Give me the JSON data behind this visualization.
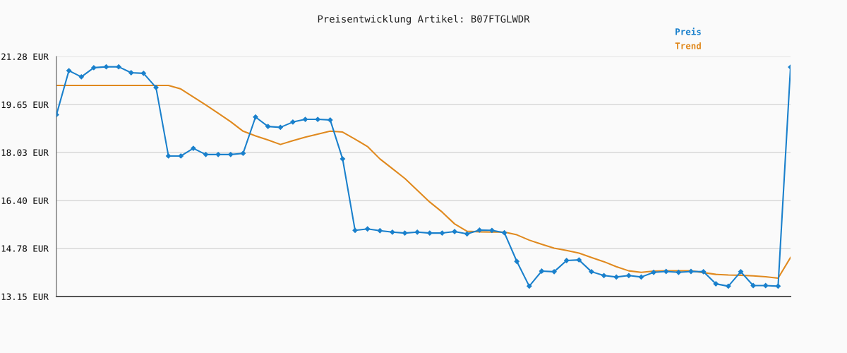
{
  "chart_data": {
    "type": "line",
    "title": "Preisentwicklung Artikel: B07FTGLWDR",
    "categories": [
      null,
      null,
      null,
      null,
      null,
      null,
      null,
      null,
      null,
      null,
      null,
      null,
      null,
      null,
      null,
      null,
      null,
      null,
      null,
      null,
      null,
      null,
      null,
      null,
      null,
      null,
      null,
      null,
      null,
      null,
      null,
      null,
      null,
      null,
      null,
      null,
      null,
      null,
      null,
      null,
      null,
      null,
      null,
      null,
      null,
      null,
      null,
      null,
      null,
      null,
      null,
      null,
      null,
      null,
      null,
      null,
      null,
      null,
      null,
      null
    ],
    "series": [
      {
        "name": "Preis",
        "color": "#1a80cc",
        "marker": "diamond",
        "values": [
          19.31,
          20.8,
          20.59,
          20.9,
          20.93,
          20.93,
          20.73,
          20.71,
          20.23,
          17.91,
          17.91,
          18.17,
          17.96,
          17.96,
          17.96,
          18.0,
          19.23,
          18.91,
          18.88,
          19.06,
          19.15,
          19.15,
          19.13,
          17.81,
          15.39,
          15.44,
          15.38,
          15.33,
          15.3,
          15.33,
          15.3,
          15.3,
          15.35,
          15.27,
          15.4,
          15.39,
          15.31,
          14.34,
          13.5,
          14.01,
          13.99,
          14.37,
          14.39,
          13.99,
          13.86,
          13.81,
          13.86,
          13.81,
          13.97,
          14.0,
          13.97,
          14.0,
          13.99,
          13.58,
          13.5,
          13.99,
          13.52,
          13.52,
          13.5,
          20.92
        ]
      },
      {
        "name": "Trend",
        "color": "#e0891e",
        "marker": "none",
        "values": [
          20.3,
          20.3,
          20.3,
          20.3,
          20.3,
          20.3,
          20.3,
          20.3,
          20.3,
          20.3,
          20.18,
          19.91,
          19.64,
          19.36,
          19.07,
          18.75,
          18.59,
          18.45,
          18.3,
          18.43,
          18.55,
          18.65,
          18.75,
          18.72,
          18.48,
          18.23,
          17.81,
          17.48,
          17.15,
          16.75,
          16.35,
          16.01,
          15.61,
          15.36,
          15.34,
          15.33,
          15.33,
          15.24,
          15.06,
          14.92,
          14.79,
          14.71,
          14.62,
          14.47,
          14.33,
          14.16,
          14.02,
          13.97,
          14.01,
          14.02,
          14.02,
          14.02,
          13.96,
          13.9,
          13.88,
          13.87,
          13.85,
          13.82,
          13.77,
          14.47
        ]
      }
    ],
    "ylim": [
      13.15,
      21.28
    ],
    "yticks": [
      {
        "value": 13.15,
        "label": "13.15 EUR"
      },
      {
        "value": 14.78,
        "label": "14.78 EUR"
      },
      {
        "value": 16.4,
        "label": "16.40 EUR"
      },
      {
        "value": 18.03,
        "label": "18.03 EUR"
      },
      {
        "value": 19.65,
        "label": "19.65 EUR"
      },
      {
        "value": 21.28,
        "label": "21.28 EUR"
      }
    ],
    "grid": "y",
    "legend": "top right",
    "line_style": "solid",
    "tick_labels": "y"
  }
}
